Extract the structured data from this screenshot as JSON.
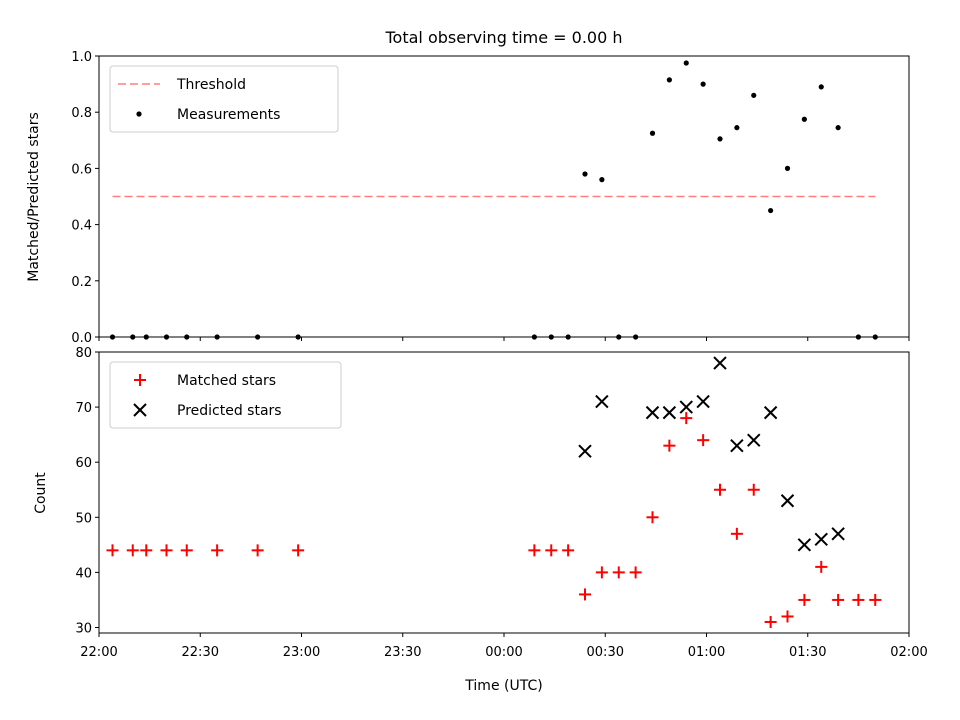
{
  "chart_data": [
    {
      "type": "scatter",
      "title": "Total observing time = 0.00 h",
      "ylabel": "Matched/Predicted stars",
      "xlabel": "",
      "xlim": [
        "22:00",
        "02:00"
      ],
      "ylim": [
        0,
        1.0
      ],
      "yticks": [
        "0.0",
        "0.2",
        "0.4",
        "0.6",
        "0.8",
        "1.0"
      ],
      "grid": false,
      "legend": "top-left",
      "threshold": {
        "name": "Threshold",
        "value": 0.5,
        "x_start": "22:04",
        "x_end": "01:50",
        "color": "#ff7f7f",
        "style": "dashed"
      },
      "series": [
        {
          "name": "Measurements",
          "marker": "dot",
          "color": "#000000",
          "points": [
            {
              "x": "22:04",
              "y": 0.0
            },
            {
              "x": "22:10",
              "y": 0.0
            },
            {
              "x": "22:14",
              "y": 0.0
            },
            {
              "x": "22:20",
              "y": 0.0
            },
            {
              "x": "22:26",
              "y": 0.0
            },
            {
              "x": "22:35",
              "y": 0.0
            },
            {
              "x": "22:47",
              "y": 0.0
            },
            {
              "x": "22:59",
              "y": 0.0
            },
            {
              "x": "00:09",
              "y": 0.0
            },
            {
              "x": "00:14",
              "y": 0.0
            },
            {
              "x": "00:19",
              "y": 0.0
            },
            {
              "x": "00:24",
              "y": 0.58
            },
            {
              "x": "00:29",
              "y": 0.56
            },
            {
              "x": "00:34",
              "y": 0.0
            },
            {
              "x": "00:39",
              "y": 0.0
            },
            {
              "x": "00:44",
              "y": 0.725
            },
            {
              "x": "00:49",
              "y": 0.915
            },
            {
              "x": "00:54",
              "y": 0.975
            },
            {
              "x": "00:59",
              "y": 0.9
            },
            {
              "x": "01:04",
              "y": 0.705
            },
            {
              "x": "01:09",
              "y": 0.745
            },
            {
              "x": "01:14",
              "y": 0.86
            },
            {
              "x": "01:19",
              "y": 0.45
            },
            {
              "x": "01:24",
              "y": 0.6
            },
            {
              "x": "01:29",
              "y": 0.775
            },
            {
              "x": "01:34",
              "y": 0.89
            },
            {
              "x": "01:39",
              "y": 0.745
            },
            {
              "x": "01:45",
              "y": 0.0
            },
            {
              "x": "01:50",
              "y": 0.0
            }
          ]
        }
      ]
    },
    {
      "type": "scatter",
      "title": "",
      "ylabel": "Count",
      "xlabel": "Time (UTC)",
      "xlim": [
        "22:00",
        "02:00"
      ],
      "xticks": [
        "22:00",
        "22:30",
        "23:00",
        "23:30",
        "00:00",
        "00:30",
        "01:00",
        "01:30",
        "02:00"
      ],
      "ylim": [
        29,
        80
      ],
      "yticks": [
        "30",
        "40",
        "50",
        "60",
        "70",
        "80"
      ],
      "grid": false,
      "legend": "top-left",
      "series": [
        {
          "name": "Matched stars",
          "marker": "plus",
          "color": "#ff0000",
          "points": [
            {
              "x": "22:04",
              "y": 44
            },
            {
              "x": "22:10",
              "y": 44
            },
            {
              "x": "22:14",
              "y": 44
            },
            {
              "x": "22:20",
              "y": 44
            },
            {
              "x": "22:26",
              "y": 44
            },
            {
              "x": "22:35",
              "y": 44
            },
            {
              "x": "22:47",
              "y": 44
            },
            {
              "x": "22:59",
              "y": 44
            },
            {
              "x": "00:09",
              "y": 44
            },
            {
              "x": "00:14",
              "y": 44
            },
            {
              "x": "00:19",
              "y": 44
            },
            {
              "x": "00:24",
              "y": 36
            },
            {
              "x": "00:29",
              "y": 40
            },
            {
              "x": "00:34",
              "y": 40
            },
            {
              "x": "00:39",
              "y": 40
            },
            {
              "x": "00:44",
              "y": 50
            },
            {
              "x": "00:49",
              "y": 63
            },
            {
              "x": "00:54",
              "y": 68
            },
            {
              "x": "00:59",
              "y": 64
            },
            {
              "x": "01:04",
              "y": 55
            },
            {
              "x": "01:09",
              "y": 47
            },
            {
              "x": "01:14",
              "y": 55
            },
            {
              "x": "01:19",
              "y": 31
            },
            {
              "x": "01:24",
              "y": 32
            },
            {
              "x": "01:29",
              "y": 35
            },
            {
              "x": "01:34",
              "y": 41
            },
            {
              "x": "01:39",
              "y": 35
            },
            {
              "x": "01:45",
              "y": 35
            },
            {
              "x": "01:50",
              "y": 35
            }
          ]
        },
        {
          "name": "Predicted stars",
          "marker": "x",
          "color": "#000000",
          "points": [
            {
              "x": "00:24",
              "y": 62
            },
            {
              "x": "00:29",
              "y": 71
            },
            {
              "x": "00:44",
              "y": 69
            },
            {
              "x": "00:49",
              "y": 69
            },
            {
              "x": "00:54",
              "y": 70
            },
            {
              "x": "00:59",
              "y": 71
            },
            {
              "x": "01:04",
              "y": 78
            },
            {
              "x": "01:09",
              "y": 63
            },
            {
              "x": "01:14",
              "y": 64
            },
            {
              "x": "01:19",
              "y": 69
            },
            {
              "x": "01:24",
              "y": 53
            },
            {
              "x": "01:29",
              "y": 45
            },
            {
              "x": "01:34",
              "y": 46
            },
            {
              "x": "01:39",
              "y": 47
            }
          ]
        }
      ]
    }
  ]
}
